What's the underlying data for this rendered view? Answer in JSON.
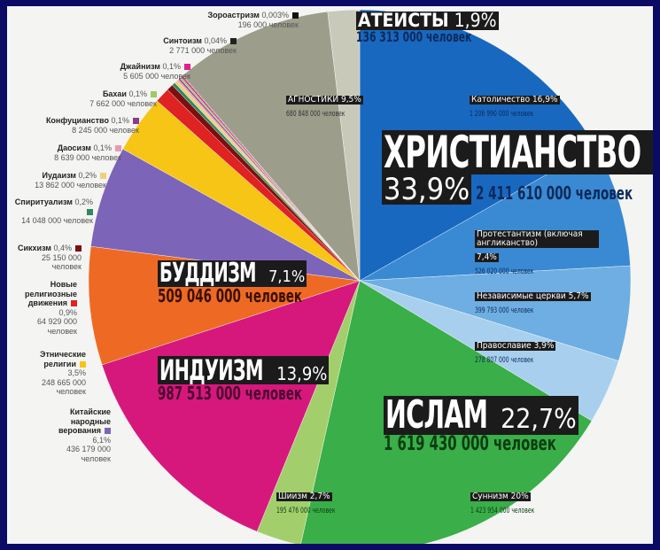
{
  "chart_data": {
    "type": "pie",
    "unit": "%",
    "series": [
      {
        "name": "Католичество",
        "value": 16.9,
        "pct": "16,9%",
        "people": "1 206 990 000 человек",
        "color": "#1868c0"
      },
      {
        "name": "Протестантизм (включая англиканство)",
        "value": 7.4,
        "pct": "7,4%",
        "people": "526 020 000 человек",
        "color": "#3a8ad3"
      },
      {
        "name": "Независимые церкви",
        "value": 5.7,
        "pct": "5,7%",
        "people": "399 793 000 человек",
        "color": "#6eaee2"
      },
      {
        "name": "Православие",
        "value": 3.9,
        "pct": "3,9%",
        "people": "278 807 000 человек",
        "color": "#a8d0ee"
      },
      {
        "name": "Суннизм",
        "value": 20,
        "pct": "20%",
        "people": "1 423 954 000 человек",
        "color": "#3aae48"
      },
      {
        "name": "Шиизм",
        "value": 2.7,
        "pct": "2,7%",
        "people": "195 476 000 человек",
        "color": "#a2cf6c"
      },
      {
        "name": "Индуизм",
        "value": 13.9,
        "pct": "13,9%",
        "people": "987 513 000 человек",
        "color": "#d6187c"
      },
      {
        "name": "Буддизм",
        "value": 7.1,
        "pct": "7,1%",
        "people": "509 046 000 человек",
        "color": "#ee6a24"
      },
      {
        "name": "Китайские народные верования",
        "value": 6.1,
        "pct": "6,1%",
        "people": "436 179 000 человек",
        "color": "#7c64b8"
      },
      {
        "name": "Этнические религии",
        "value": 3.5,
        "pct": "3,5%",
        "people": "248 665 000 человек",
        "color": "#f6c515"
      },
      {
        "name": "Новые религиозные движения",
        "value": 0.9,
        "pct": "0,9%",
        "people": "64 929 000 человек",
        "color": "#df2222"
      },
      {
        "name": "Сикхизм",
        "value": 0.4,
        "pct": "0,4%",
        "people": "25 150 000 человек",
        "color": "#7e0f0f"
      },
      {
        "name": "Спиритуализм",
        "value": 0.2,
        "pct": "0,2%",
        "people": "14 048 000 человек",
        "color": "#2c8a66"
      },
      {
        "name": "Иудаизм",
        "value": 0.2,
        "pct": "0,2%",
        "people": "13 862 000 человек",
        "color": "#efd080"
      },
      {
        "name": "Даосизм",
        "value": 0.1,
        "pct": "0,1%",
        "people": "8 639 000 человек",
        "color": "#e89ab2"
      },
      {
        "name": "Конфуцианство",
        "value": 0.1,
        "pct": "0,1%",
        "people": "8 245 000 человек",
        "color": "#8c3a8c"
      },
      {
        "name": "Бахаи",
        "value": 0.1,
        "pct": "0,1%",
        "people": "7 662 000 человек",
        "color": "#9ccc65"
      },
      {
        "name": "Джайнизм",
        "value": 0.1,
        "pct": "0,1%",
        "people": "5 605 000 человек",
        "color": "#e0208a"
      },
      {
        "name": "Синтоизм",
        "value": 0.04,
        "pct": "0,04%",
        "people": "2 771 000 человек",
        "color": "#222222"
      },
      {
        "name": "Зороастризм",
        "value": 0.003,
        "pct": "0,003%",
        "people": "196 000 человек",
        "color": "#111111"
      },
      {
        "name": "Агностики",
        "value": 9.5,
        "pct": "9,5%",
        "people": "680 848 000 человек",
        "color": "#9d9d8c"
      },
      {
        "name": "Атеисты",
        "value": 1.9,
        "pct": "1,9%",
        "people": "136 313 000 человек",
        "color": "#c9c9ba"
      }
    ],
    "groups": {
      "christianity": {
        "name": "ХРИСТИАНСТВО",
        "pct": "33,9%",
        "people": "2 411 610 000 человек"
      },
      "islam": {
        "name": "ИСЛАМ",
        "pct": "22,7%",
        "people": "1 619 430 000 человек"
      },
      "hinduism": {
        "name": "ИНДУИЗМ",
        "pct": "13,9%",
        "people": "987 513 000 человек"
      },
      "buddhism": {
        "name": "БУДДИЗМ",
        "pct": "7,1%",
        "people": "509 046 000 человек"
      },
      "atheists": {
        "name": "АТЕИСТЫ",
        "pct": "1,9%",
        "people": "136 313 000 человек"
      },
      "agnostics": {
        "name": "АГНОСТИКИ",
        "pct": "9,5%",
        "people": "680 848 000 человек"
      }
    }
  }
}
